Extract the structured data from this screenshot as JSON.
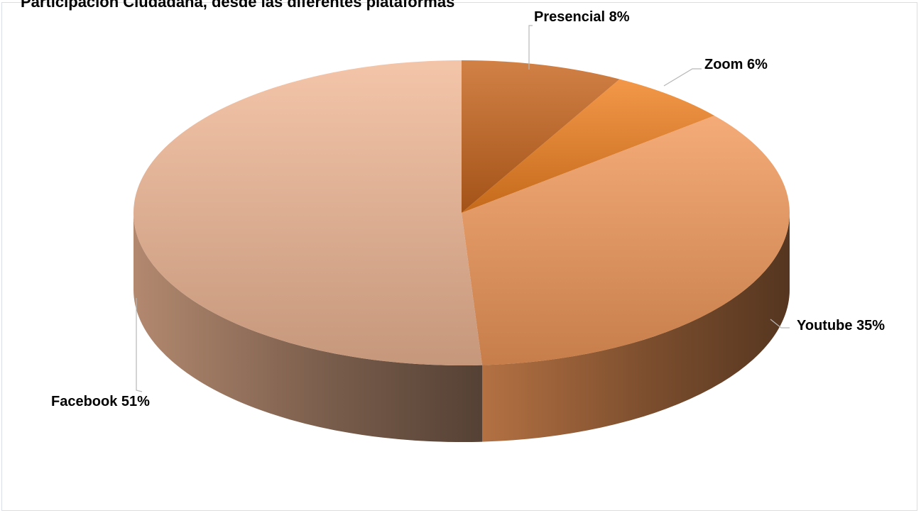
{
  "chart_data": {
    "type": "pie",
    "title": "Participación Ciudadana, desde las diferentes plataformas",
    "slices": [
      {
        "label": "Presencial",
        "value": 8,
        "display": "Presencial 8%",
        "color": "#c8651d"
      },
      {
        "label": "Zoom",
        "value": 6,
        "display": "Zoom 6%",
        "color": "#f08121"
      },
      {
        "label": "Youtube",
        "value": 35,
        "display": "Youtube 35%",
        "color": "#f2995a"
      },
      {
        "label": "Facebook",
        "value": 51,
        "display": "Facebook 51%",
        "color": "#f1b896"
      }
    ],
    "legend": "none",
    "three_d": true
  }
}
